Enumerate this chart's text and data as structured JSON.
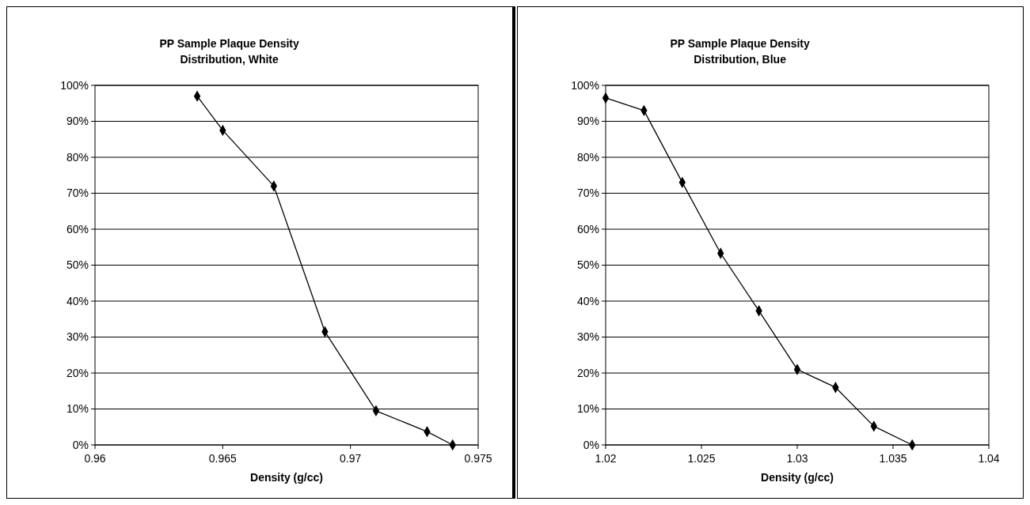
{
  "chart_data": [
    {
      "type": "line",
      "title": "PP Sample Plaque Density Distribution, White",
      "xlabel": "Density (g/cc)",
      "marker": "diamond",
      "line_style": "solid",
      "grid": "y",
      "series": [
        {
          "color": "#000000",
          "x": [
            0.964,
            0.965,
            0.967,
            0.969,
            0.971,
            0.973,
            0.974
          ],
          "values": [
            97,
            87.5,
            72,
            31.5,
            9.5,
            3.7,
            0
          ]
        }
      ],
      "xlim": [
        0.96,
        0.975
      ],
      "xticks": [
        0.96,
        0.965,
        0.97,
        0.975
      ],
      "ylim": [
        0,
        100
      ],
      "yticks": [
        {
          "value": 0,
          "label": "0%"
        },
        {
          "value": 10,
          "label": "10%"
        },
        {
          "value": 20,
          "label": "20%"
        },
        {
          "value": 30,
          "label": "30%"
        },
        {
          "value": 40,
          "label": "40%"
        },
        {
          "value": 50,
          "label": "50%"
        },
        {
          "value": 60,
          "label": "60%"
        },
        {
          "value": 70,
          "label": "70%"
        },
        {
          "value": 80,
          "label": "80%"
        },
        {
          "value": 90,
          "label": "90%"
        },
        {
          "value": 100,
          "label": "100%"
        }
      ]
    },
    {
      "type": "line",
      "title": "PP Sample Plaque Density Distribution, Blue",
      "xlabel": "Density (g/cc)",
      "marker": "diamond",
      "line_style": "solid",
      "grid": "y",
      "series": [
        {
          "color": "#000000",
          "x": [
            1.02,
            1.022,
            1.024,
            1.026,
            1.028,
            1.03,
            1.032,
            1.034,
            1.036
          ],
          "values": [
            96.5,
            93,
            73,
            53.3,
            37.3,
            21,
            16,
            5.2,
            0
          ]
        }
      ],
      "xlim": [
        1.02,
        1.04
      ],
      "xticks": [
        1.02,
        1.025,
        1.03,
        1.035,
        1.04
      ],
      "ylim": [
        0,
        100
      ],
      "yticks": [
        {
          "value": 0,
          "label": "0%"
        },
        {
          "value": 10,
          "label": "10%"
        },
        {
          "value": 20,
          "label": "20%"
        },
        {
          "value": 30,
          "label": "30%"
        },
        {
          "value": 40,
          "label": "40%"
        },
        {
          "value": 50,
          "label": "50%"
        },
        {
          "value": 60,
          "label": "60%"
        },
        {
          "value": 70,
          "label": "70%"
        },
        {
          "value": 80,
          "label": "80%"
        },
        {
          "value": 90,
          "label": "90%"
        },
        {
          "value": 100,
          "label": "100%"
        }
      ]
    }
  ]
}
